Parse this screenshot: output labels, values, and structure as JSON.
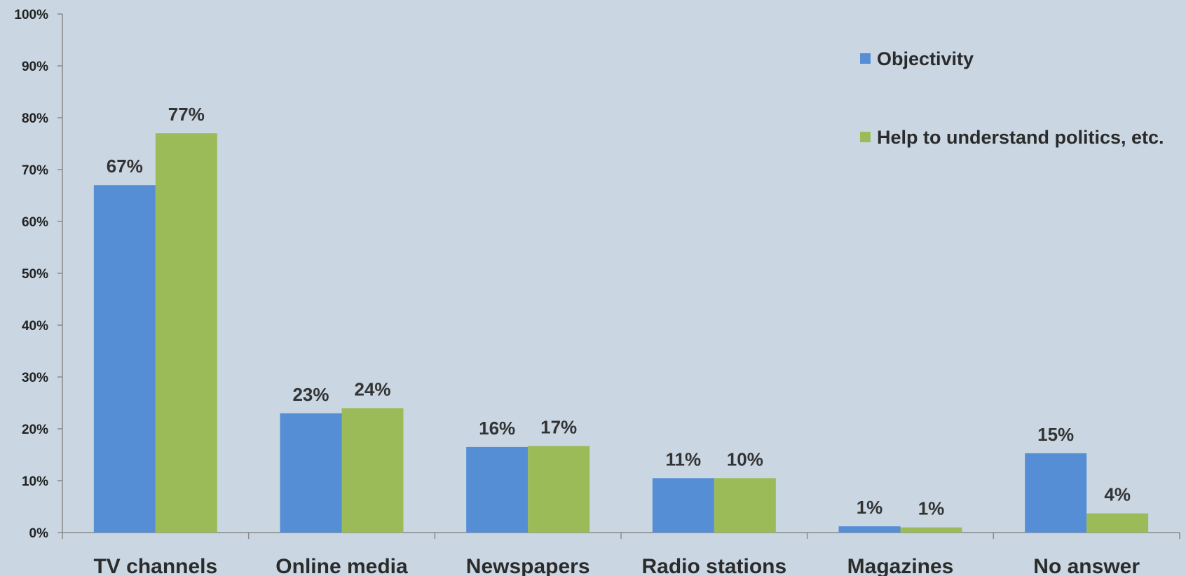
{
  "chart_data": {
    "type": "bar",
    "categories": [
      "TV channels",
      "Online media",
      "Newspapers",
      "Radio stations",
      "Magazines",
      "No answer"
    ],
    "series": [
      {
        "name": "Objectivity",
        "color": "#558ed5",
        "values": [
          67,
          23,
          16.5,
          10.5,
          1.2,
          15.3
        ],
        "labels": [
          "67%",
          "23%",
          "16%",
          "11%",
          "1%",
          "15%"
        ]
      },
      {
        "name": "Help to understand politics, etc.",
        "color": "#9bbb59",
        "values": [
          77,
          24,
          16.7,
          10.5,
          1,
          3.7
        ],
        "labels": [
          "77%",
          "24%",
          "17%",
          "10%",
          "1%",
          "4%"
        ]
      }
    ],
    "ylim": [
      0,
      100
    ],
    "yticks": [
      "0%",
      "10%",
      "20%",
      "30%",
      "40%",
      "50%",
      "60%",
      "70%",
      "80%",
      "90%",
      "100%"
    ],
    "legend_position": "top-right",
    "grid": false
  }
}
